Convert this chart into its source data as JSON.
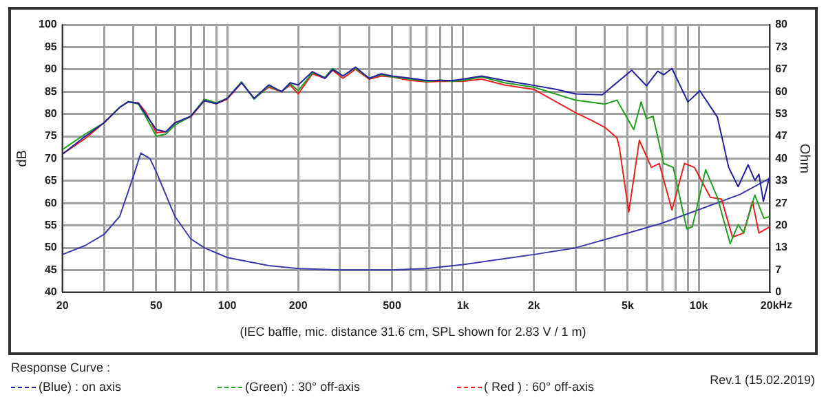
{
  "chart_data": {
    "type": "line",
    "xlabel": "Hz",
    "ylabel": "dB",
    "y2label": "Ohm",
    "legend_title": "Response Curve :",
    "legend": "bottom",
    "log": "x",
    "grid": true,
    "marker": "none",
    "line_style": "solid",
    "annotations": [
      "(IEC baffle, mic. distance 31.6 cm, SPL shown for 2.83 V / 1 m)",
      "Rev.1 (15.02.2019)"
    ],
    "xlim": [
      20,
      20000
    ],
    "xticks": [
      20,
      {
        "value": 30,
        "label": null
      },
      {
        "value": 40,
        "label": null
      },
      50,
      {
        "value": 60,
        "label": null
      },
      {
        "value": 70,
        "label": null
      },
      {
        "value": 80,
        "label": null
      },
      {
        "value": 90,
        "label": null
      },
      100,
      200,
      {
        "value": 300,
        "label": null
      },
      {
        "value": 400,
        "label": null
      },
      500,
      {
        "value": 600,
        "label": null
      },
      {
        "value": 700,
        "label": null
      },
      {
        "value": 800,
        "label": null
      },
      {
        "value": 900,
        "label": null
      },
      {
        "value": 1000,
        "label": "1k"
      },
      {
        "value": 2000,
        "label": "2k"
      },
      {
        "value": 3000,
        "label": null
      },
      {
        "value": 4000,
        "label": null
      },
      {
        "value": 5000,
        "label": "5k"
      },
      {
        "value": 6000,
        "label": null
      },
      {
        "value": 7000,
        "label": null
      },
      {
        "value": 8000,
        "label": null
      },
      {
        "value": 9000,
        "label": null
      },
      {
        "value": 10000,
        "label": "10k"
      },
      {
        "value": 20000,
        "label": "20k"
      }
    ],
    "ylim": [
      40,
      100
    ],
    "yticks": [
      40,
      45,
      50,
      55,
      60,
      65,
      70,
      75,
      80,
      85,
      90,
      95,
      100
    ],
    "y2lim": [
      0,
      80
    ],
    "y2ticks": [
      0,
      {
        "value": 6.67,
        "label": "7"
      },
      {
        "value": 13.33,
        "label": "13"
      },
      20,
      {
        "value": 26.67,
        "label": "27"
      },
      {
        "value": 33.33,
        "label": "33"
      },
      40,
      {
        "value": 46.67,
        "label": "47"
      },
      {
        "value": 53.33,
        "label": "53"
      },
      60,
      {
        "value": 66.67,
        "label": "67"
      },
      {
        "value": 73.33,
        "label": "73"
      },
      80
    ],
    "series": [
      {
        "name": "(Blue)  : on axis",
        "color": "#2020a0",
        "x": [
          20,
          25,
          30,
          35,
          38,
          42,
          45,
          50,
          55,
          60,
          70,
          80,
          90,
          100,
          115,
          130,
          150,
          170,
          185,
          200,
          230,
          260,
          280,
          310,
          350,
          400,
          450,
          500,
          600,
          700,
          800,
          900,
          1000,
          1200,
          1500,
          2000,
          2500,
          3000,
          3900,
          5200,
          6000,
          6700,
          7100,
          7700,
          9000,
          10100,
          12000,
          13400,
          14700,
          16200,
          17300,
          18000,
          18800,
          20000
        ],
        "values": [
          71,
          75,
          78,
          81.5,
          82.7,
          82.4,
          80,
          76.5,
          76,
          78,
          79.5,
          83,
          82.3,
          83.5,
          87,
          83.5,
          86.5,
          85,
          87,
          86.5,
          89.5,
          88,
          90,
          88.5,
          90.5,
          88,
          89,
          88.5,
          88,
          87.5,
          87.5,
          87.5,
          87.8,
          88.5,
          87.5,
          86.4,
          85.5,
          84.5,
          84.3,
          89.8,
          86.3,
          89.6,
          88.8,
          90.2,
          82.7,
          85.2,
          79.3,
          68,
          63.7,
          68.6,
          65.1,
          66.5,
          60.4,
          66
        ]
      },
      {
        "name": "(Green) : 30° off-axis",
        "color": "#20a020",
        "x": [
          20,
          25,
          30,
          35,
          38,
          42,
          45,
          50,
          55,
          60,
          70,
          80,
          90,
          100,
          115,
          130,
          150,
          170,
          185,
          200,
          230,
          260,
          280,
          310,
          350,
          400,
          450,
          500,
          600,
          700,
          800,
          900,
          1000,
          1200,
          1500,
          2000,
          3000,
          4000,
          4500,
          5300,
          5700,
          6000,
          6400,
          7100,
          7800,
          8900,
          9400,
          10700,
          12000,
          13600,
          14700,
          15500,
          17300,
          18900,
          20000
        ],
        "values": [
          72,
          75.5,
          78,
          81.5,
          82.8,
          82.2,
          79.5,
          75,
          75.5,
          77.5,
          79.5,
          83.3,
          82.5,
          83.5,
          87.2,
          83.3,
          86.3,
          85,
          86.8,
          85.2,
          89.3,
          88.2,
          90.2,
          88.5,
          90.3,
          88,
          88.8,
          88.3,
          87.8,
          87.3,
          87.6,
          87.3,
          87.5,
          88.3,
          87,
          86,
          83.1,
          82.2,
          83.1,
          76.5,
          82.7,
          78.9,
          79.5,
          68.9,
          68,
          54.2,
          54.7,
          67.5,
          61.3,
          50.9,
          55.2,
          53.3,
          61.8,
          56.6,
          57
        ]
      },
      {
        "name": "( Red ) : 60° off-axis",
        "color": "#e82020",
        "x": [
          20,
          25,
          30,
          35,
          38,
          42,
          45,
          50,
          55,
          60,
          70,
          80,
          90,
          100,
          115,
          130,
          150,
          170,
          185,
          200,
          230,
          260,
          280,
          310,
          350,
          400,
          450,
          500,
          600,
          700,
          800,
          900,
          1000,
          1200,
          1500,
          2000,
          3000,
          3500,
          4000,
          4500,
          4600,
          5050,
          5600,
          6300,
          6800,
          7700,
          8700,
          9600,
          11200,
          12500,
          13900,
          15500,
          16900,
          18000,
          20000
        ],
        "values": [
          71,
          74.5,
          78,
          81.5,
          82.7,
          82.5,
          80.5,
          75.8,
          76,
          78,
          79.3,
          83,
          82.3,
          83.3,
          87,
          83.5,
          86,
          85,
          86.5,
          84.5,
          89,
          88,
          89.8,
          88,
          90,
          87.8,
          88.5,
          88.3,
          87.5,
          87.2,
          87.3,
          87.3,
          87.3,
          87.8,
          86.5,
          85.5,
          80.3,
          78.6,
          77,
          74.6,
          72.7,
          58,
          74.1,
          68,
          68.9,
          58.5,
          68.9,
          68,
          61.3,
          60.9,
          52.4,
          53.3,
          60.4,
          53.3,
          54.7
        ]
      },
      {
        "color": "#3a3ab0",
        "axis": "y2",
        "x": [
          20,
          25,
          30,
          35,
          40,
          43,
          47,
          50,
          60,
          70,
          80,
          100,
          150,
          200,
          300,
          500,
          700,
          1000,
          2000,
          3000,
          5000,
          7000,
          10000,
          15000,
          20000
        ],
        "values": [
          11.3,
          14,
          17.3,
          22.7,
          34.7,
          41.6,
          40,
          36,
          22.7,
          16,
          13.3,
          10.4,
          8,
          7.1,
          6.7,
          6.7,
          7.1,
          8.3,
          11.3,
          13.3,
          17.7,
          20.7,
          24.7,
          29.3,
          34.1
        ]
      }
    ]
  }
}
